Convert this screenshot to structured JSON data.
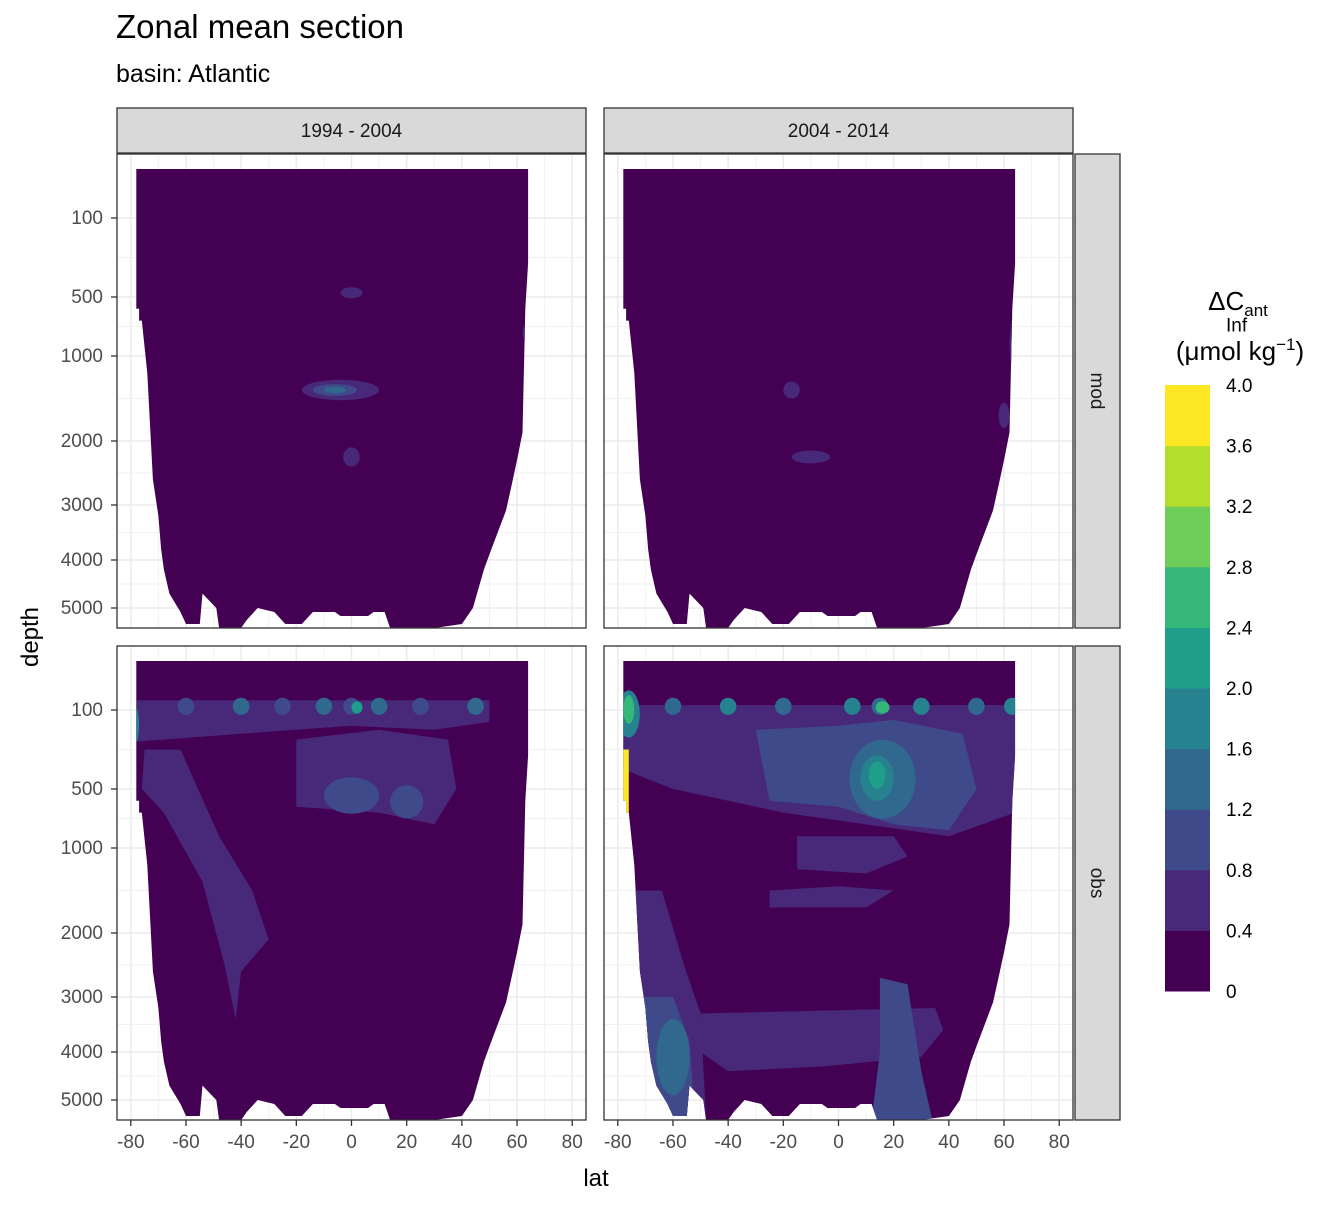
{
  "chart_data": {
    "type": "heatmap",
    "title": "Zonal mean section",
    "subtitle": "basin: Atlantic",
    "xlabel": "lat",
    "ylabel": "depth",
    "xlim": [
      -85,
      85
    ],
    "x_ticks": [
      -80,
      -60,
      -40,
      -20,
      0,
      20,
      40,
      60,
      80
    ],
    "y_ticks": [
      100,
      500,
      1000,
      2000,
      3000,
      4000,
      5000
    ],
    "y_reversed": true,
    "column_facets": [
      "1994 - 2004",
      "2004 - 2014"
    ],
    "row_facets": [
      "mod",
      "obs"
    ],
    "legend": {
      "title_main": "ΔC",
      "title_sub": "ant",
      "title_unit_pre": "(μmol kg",
      "title_unit_sup": "−1",
      "title_unit_post": ")",
      "position": "right",
      "breaks": [
        "0",
        "0.4",
        "0.8",
        "1.2",
        "1.6",
        "2.0",
        "2.4",
        "2.8",
        "3.2",
        "3.6",
        "4.0",
        "Inf"
      ],
      "colors": [
        "#440154",
        "#482878",
        "#3E4A89",
        "#31688E",
        "#26828E",
        "#1F9E89",
        "#35B779",
        "#6DCD59",
        "#B4DE2C",
        "#FDE725"
      ]
    },
    "panels": [
      {
        "column": "1994 - 2004",
        "row": "mod",
        "description_level": "mostly below 0.4",
        "features": [
          {
            "lat": -7,
            "depth": 1400,
            "level_index": 3
          },
          {
            "lat": -7,
            "depth": 1400,
            "level_index": 2
          },
          {
            "lat": 0,
            "depth": 2250,
            "level_index": 1
          },
          {
            "lat": 0,
            "depth": 480,
            "level_index": 1
          }
        ]
      },
      {
        "column": "2004 - 2014",
        "row": "mod",
        "description_level": "mostly below 0.4",
        "features": [
          {
            "lat": -17,
            "depth": 1400,
            "level_index": 1
          },
          {
            "lat": -10,
            "depth": 2250,
            "level_index": 1
          }
        ]
      },
      {
        "column": "1994 - 2004",
        "row": "obs",
        "description_level": "0.4 - 1.2 in upper ocean",
        "features": [
          {
            "lat": 0,
            "depth": 100,
            "level_index": 5
          },
          {
            "lat": -80,
            "depth": 150,
            "level_index": 4
          },
          {
            "lat": 0,
            "depth": 550,
            "level_index": 2
          }
        ]
      },
      {
        "column": "2004 - 2014",
        "row": "obs",
        "description_level": "0.4 - 2.8 in upper ocean, up to Inf near -78",
        "features": [
          {
            "lat": -77,
            "depth": 100,
            "level_index": 5
          },
          {
            "lat": -78,
            "depth": 500,
            "level_index": 9
          },
          {
            "lat": 15,
            "depth": 100,
            "level_index": 6
          },
          {
            "lat": 15,
            "depth": 500,
            "level_index": 5
          },
          {
            "lat": -60,
            "depth": 4000,
            "level_index": 3
          }
        ]
      }
    ]
  }
}
